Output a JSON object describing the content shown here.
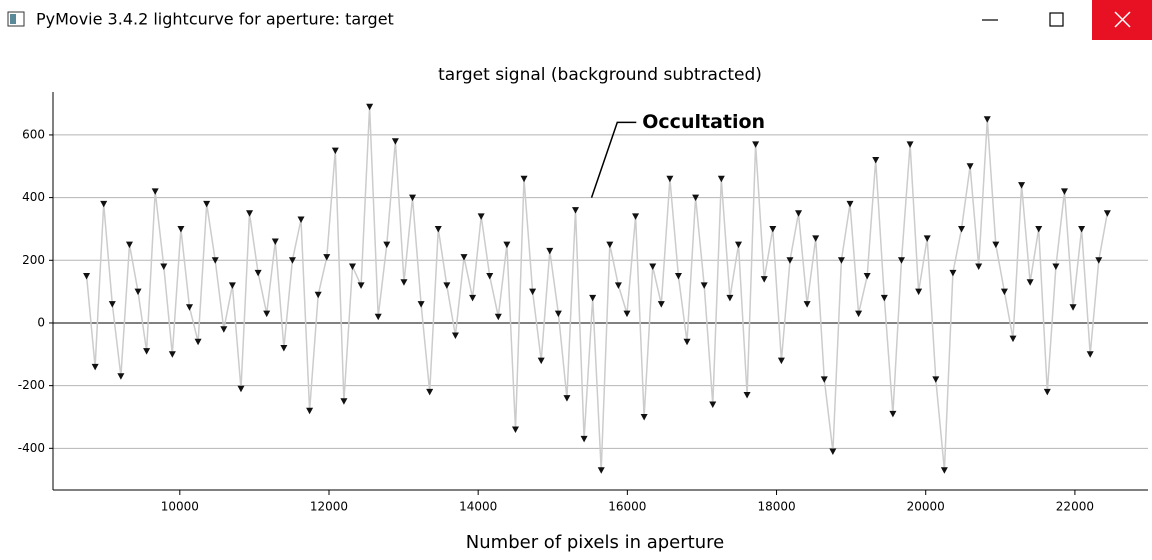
{
  "window": {
    "title": "PyMovie 3.4.2 lightcurve for aperture: target"
  },
  "chart_data": {
    "type": "line",
    "title": "target signal (background subtracted)",
    "xlabel": "Number of pixels in aperture",
    "xlim": [
      8300,
      22980
    ],
    "ylim": [
      -533,
      737
    ],
    "xticks": [
      10000,
      12000,
      14000,
      16000,
      18000,
      20000,
      22000
    ],
    "yticks": [
      -400,
      -200,
      0,
      200,
      400,
      600
    ],
    "grid": true,
    "annotation": {
      "text": "Occultation",
      "x": 15520,
      "y": 400,
      "text_x": 16200,
      "text_y": 640
    },
    "series": [
      {
        "name": "target",
        "color": "#111111",
        "line_color": "#cccccc",
        "x": [
          8750,
          8865,
          8980,
          9095,
          9210,
          9325,
          9440,
          9555,
          9670,
          9785,
          9900,
          10015,
          10130,
          10245,
          10360,
          10475,
          10590,
          10705,
          10820,
          10935,
          11050,
          11165,
          11280,
          11395,
          11510,
          11625,
          11740,
          11855,
          11970,
          12085,
          12200,
          12315,
          12430,
          12545,
          12660,
          12775,
          12890,
          13005,
          13120,
          13235,
          13350,
          13465,
          13580,
          13695,
          13810,
          13925,
          14040,
          14155,
          14270,
          14385,
          14500,
          14615,
          14730,
          14845,
          14960,
          15075,
          15190,
          15305,
          15420,
          15535,
          15650,
          15765,
          15880,
          15995,
          16110,
          16225,
          16340,
          16455,
          16570,
          16685,
          16800,
          16915,
          17030,
          17145,
          17260,
          17375,
          17490,
          17605,
          17720,
          17835,
          17950,
          18065,
          18180,
          18295,
          18410,
          18525,
          18640,
          18755,
          18870,
          18985,
          19100,
          19215,
          19330,
          19445,
          19560,
          19675,
          19790,
          19905,
          20020,
          20135,
          20250,
          20365,
          20480,
          20595,
          20710,
          20825,
          20940,
          21055,
          21170,
          21285,
          21400,
          21515,
          21630,
          21745,
          21860,
          21975,
          22090,
          22205,
          22320,
          22435
        ],
        "values": [
          150,
          -140,
          380,
          60,
          -170,
          250,
          100,
          -90,
          420,
          180,
          -100,
          300,
          50,
          -60,
          380,
          200,
          -20,
          120,
          -210,
          350,
          160,
          30,
          260,
          -80,
          200,
          330,
          -280,
          90,
          210,
          550,
          -250,
          180,
          120,
          690,
          20,
          250,
          580,
          130,
          400,
          60,
          -220,
          300,
          120,
          -40,
          210,
          80,
          340,
          150,
          20,
          250,
          -340,
          460,
          100,
          -120,
          230,
          30,
          -240,
          360,
          -370,
          80,
          -470,
          250,
          120,
          30,
          340,
          -300,
          180,
          60,
          460,
          150,
          -60,
          400,
          120,
          -260,
          460,
          80,
          250,
          -230,
          570,
          140,
          300,
          -120,
          200,
          350,
          60,
          270,
          -180,
          -410,
          200,
          380,
          30,
          150,
          520,
          80,
          -290,
          200,
          570,
          100,
          270,
          -180,
          -470,
          160,
          300,
          500,
          180,
          650,
          250,
          100,
          -50,
          440,
          130,
          300,
          -220,
          180,
          420,
          50,
          300,
          -100,
          200,
          350
        ]
      }
    ]
  }
}
